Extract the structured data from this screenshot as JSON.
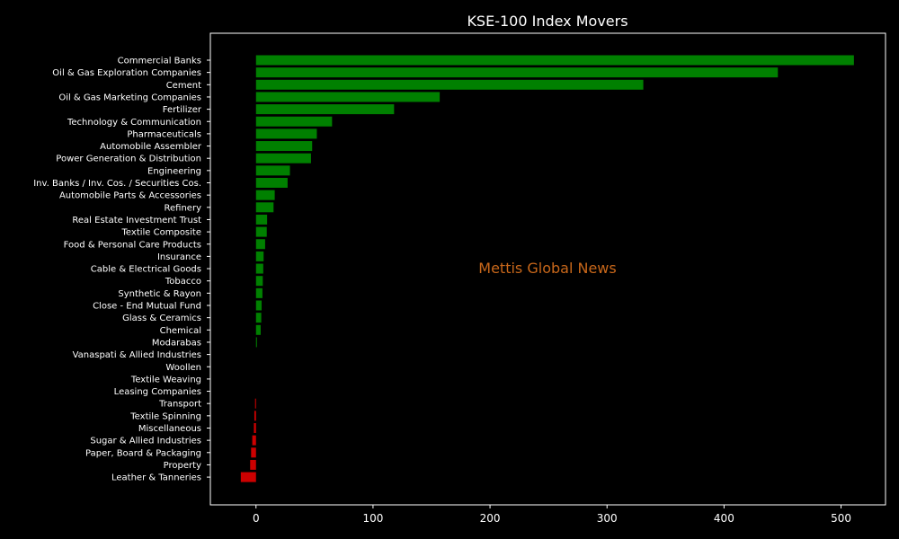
{
  "chart_data": {
    "type": "bar",
    "orientation": "horizontal",
    "title": "KSE-100 Index Movers",
    "watermark": "Mettis Global News",
    "xlabel": "",
    "ylabel": "",
    "xlim": [
      -39,
      538
    ],
    "xticks": [
      0,
      100,
      200,
      300,
      400,
      500
    ],
    "grid": false,
    "legend": "none",
    "categories": [
      "Commercial Banks",
      "Oil & Gas Exploration Companies",
      "Cement",
      "Oil & Gas Marketing Companies",
      "Fertilizer",
      "Technology & Communication",
      "Pharmaceuticals",
      "Automobile Assembler",
      "Power Generation & Distribution",
      "Engineering",
      "Inv. Banks / Inv. Cos. / Securities Cos.",
      "Automobile Parts & Accessories",
      "Refinery",
      "Real Estate Investment Trust",
      "Textile Composite",
      "Food & Personal Care Products",
      "Insurance",
      "Cable & Electrical Goods",
      "Tobacco",
      "Synthetic & Rayon",
      "Close - End Mutual Fund",
      "Glass & Ceramics",
      "Chemical",
      "Modarabas",
      "Vanaspati & Allied Industries",
      "Woollen",
      "Textile Weaving",
      "Leasing Companies",
      "Transport",
      "Textile Spinning",
      "Miscellaneous",
      "Sugar & Allied Industries",
      "Paper, Board & Packaging",
      "Property",
      "Leather & Tanneries"
    ],
    "values": [
      511,
      446,
      331,
      157,
      118,
      65,
      52,
      48,
      47,
      29,
      27,
      16,
      15,
      9.5,
      9.2,
      7.8,
      6.5,
      6.2,
      5.8,
      5.5,
      4.8,
      4.5,
      4,
      0.8,
      0,
      0,
      0,
      0,
      -0.8,
      -1.4,
      -1.8,
      -3.2,
      -4.2,
      -5,
      -13
    ],
    "colors": {
      "positive": "#008000",
      "negative": "#cc0000",
      "axes": "#ffffff",
      "watermark": "#c8671a",
      "background": "#000000"
    }
  }
}
